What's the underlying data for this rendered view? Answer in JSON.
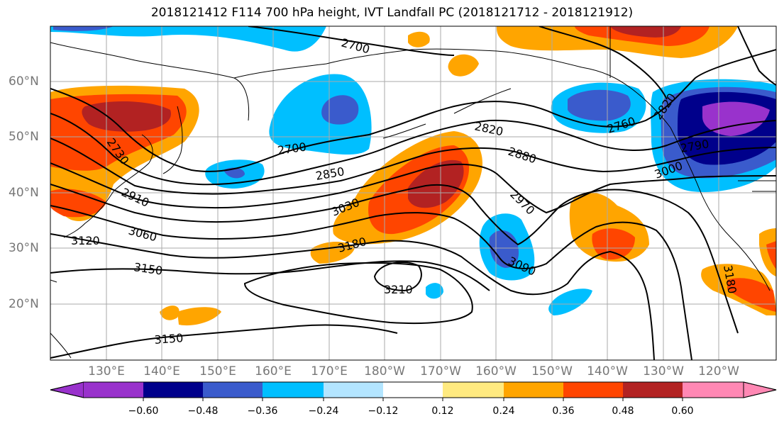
{
  "title": "2018121412 F114 700 hPa height, IVT Landfall PC (2018121712 - 2018121912)",
  "axes": {
    "lat_labels": [
      "60°N",
      "50°N",
      "40°N",
      "30°N",
      "20°N"
    ],
    "lon_labels": [
      "130°E",
      "140°E",
      "150°E",
      "160°E",
      "170°E",
      "180°W",
      "170°W",
      "160°W",
      "150°W",
      "140°W",
      "130°W",
      "120°W"
    ]
  },
  "contour_labels": [
    "2700",
    "2730",
    "2910",
    "3060",
    "3120",
    "3150",
    "2700",
    "2850",
    "3030",
    "3180",
    "3210",
    "3150",
    "2820",
    "2880",
    "2970",
    "3090",
    "2760",
    "2820",
    "2790",
    "3000",
    "3180"
  ],
  "colorbar": {
    "tick_labels": [
      "−0.60",
      "−0.48",
      "−0.36",
      "−0.24",
      "−0.12",
      "0.12",
      "0.24",
      "0.36",
      "0.48",
      "0.60"
    ],
    "colors": [
      "#9932cc",
      "#00008b",
      "#3a5bcc",
      "#00bfff",
      "#b3e5ff",
      "#ffffff",
      "#ffea80",
      "#ffa500",
      "#ff4500",
      "#b22222",
      "#ff88b4"
    ]
  }
}
